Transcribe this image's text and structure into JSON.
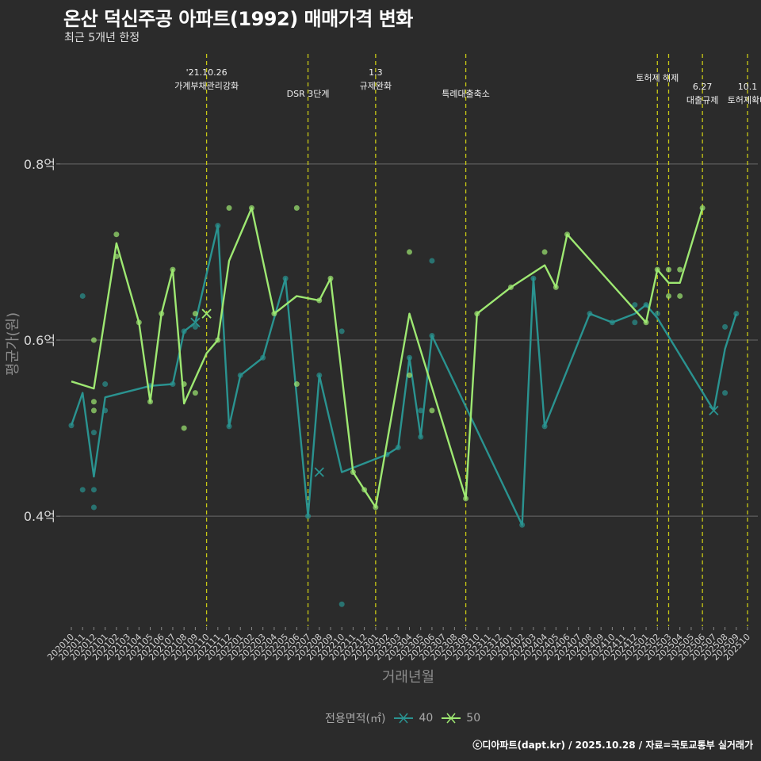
{
  "title": "온산 덕신주공 아파트(1992) 매매가격 변화",
  "subtitle": "최근 5개년 한정",
  "footer": "ⓒ디아파트(dapt.kr) / 2025.10.28 / 자료=국토교통부 실거래가",
  "legend": {
    "title": "전용면적(㎡)",
    "items": [
      {
        "label": "40",
        "color": "#2a9390"
      },
      {
        "label": "50",
        "color": "#9ee872"
      }
    ]
  },
  "chart_data": {
    "type": "line",
    "xlabel": "거래년월",
    "ylabel": "평균가(원)",
    "ylim": [
      0.275,
      0.925
    ],
    "yticks": [
      {
        "value": 0.4,
        "label": "0.4억"
      },
      {
        "value": 0.6,
        "label": "0.6억"
      },
      {
        "value": 0.8,
        "label": "0.8억"
      }
    ],
    "categories": [
      "202010",
      "202011",
      "202012",
      "202101",
      "202102",
      "202103",
      "202104",
      "202105",
      "202106",
      "202107",
      "202108",
      "202109",
      "202110",
      "202111",
      "202112",
      "202201",
      "202202",
      "202203",
      "202204",
      "202205",
      "202206",
      "202207",
      "202208",
      "202209",
      "202210",
      "202211",
      "202212",
      "202301",
      "202302",
      "202303",
      "202304",
      "202305",
      "202306",
      "202307",
      "202308",
      "202309",
      "202310",
      "202311",
      "202312",
      "202401",
      "202402",
      "202403",
      "202404",
      "202405",
      "202406",
      "202407",
      "202408",
      "202409",
      "202410",
      "202411",
      "202412",
      "202501",
      "202502",
      "202503",
      "202504",
      "202505",
      "202506",
      "202507",
      "202508",
      "202509",
      "202510"
    ],
    "events": [
      {
        "x": 12.0,
        "lines": [
          "'21.10.26",
          "가계부채관리강화"
        ],
        "row": 0
      },
      {
        "x": 21.0,
        "lines": [
          "DSR 3단계"
        ],
        "row": 2
      },
      {
        "x": 27.0,
        "lines": [
          "1.3",
          "규제완화"
        ],
        "row": 0
      },
      {
        "x": 35.0,
        "lines": [
          "특례대출축소"
        ],
        "row": 2
      },
      {
        "x": 52.0,
        "lines": [
          "토허제 해제"
        ],
        "row": 1
      },
      {
        "x": 53.0,
        "lines": [
          ""
        ],
        "row": 1
      },
      {
        "x": 56.0,
        "lines": [
          "6.27",
          "대출규제"
        ],
        "row": 1
      },
      {
        "x": 60.0,
        "lines": [
          "10.1",
          "토허제확대"
        ],
        "row": 1
      }
    ],
    "series": [
      {
        "name": "40",
        "color": "#2a9390",
        "line": [
          [
            0,
            0.503
          ],
          [
            1,
            0.54
          ],
          [
            2,
            0.445
          ],
          [
            3,
            0.535
          ],
          [
            7,
            0.548
          ],
          [
            9,
            0.55
          ],
          [
            10,
            0.61
          ],
          [
            11,
            0.62
          ],
          [
            13,
            0.73
          ],
          [
            14,
            0.502
          ],
          [
            15,
            0.56
          ],
          [
            17,
            0.58
          ],
          [
            19,
            0.67
          ],
          [
            21,
            0.4
          ],
          [
            22,
            0.56
          ],
          [
            24,
            0.45
          ],
          [
            28,
            0.47
          ],
          [
            29,
            0.478
          ],
          [
            30,
            0.58
          ],
          [
            31,
            0.49
          ],
          [
            32,
            0.605
          ],
          [
            40,
            0.39
          ],
          [
            41,
            0.67
          ],
          [
            42,
            0.502
          ],
          [
            46,
            0.63
          ],
          [
            48,
            0.62
          ],
          [
            50,
            0.63
          ],
          [
            51,
            0.64
          ],
          [
            52,
            0.625
          ],
          [
            57,
            0.52
          ],
          [
            58,
            0.59
          ],
          [
            59,
            0.63
          ]
        ],
        "points": [
          [
            0,
            0.503
          ],
          [
            1,
            0.65
          ],
          [
            1,
            0.43
          ],
          [
            2,
            0.495
          ],
          [
            2,
            0.43
          ],
          [
            2,
            0.41
          ],
          [
            3,
            0.55
          ],
          [
            3,
            0.52
          ],
          [
            7,
            0.548
          ],
          [
            9,
            0.55
          ],
          [
            10,
            0.61
          ],
          [
            11,
            0.615
          ],
          [
            13,
            0.73
          ],
          [
            14,
            0.502
          ],
          [
            15,
            0.56
          ],
          [
            17,
            0.58
          ],
          [
            19,
            0.67
          ],
          [
            21,
            0.4
          ],
          [
            22,
            0.56
          ],
          [
            24,
            0.61
          ],
          [
            24,
            0.3
          ],
          [
            28,
            0.47
          ],
          [
            29,
            0.478
          ],
          [
            30,
            0.58
          ],
          [
            31,
            0.49
          ],
          [
            31,
            0.52
          ],
          [
            32,
            0.69
          ],
          [
            32,
            0.605
          ],
          [
            40,
            0.39
          ],
          [
            41,
            0.67
          ],
          [
            42,
            0.502
          ],
          [
            46,
            0.63
          ],
          [
            48,
            0.62
          ],
          [
            50,
            0.64
          ],
          [
            50,
            0.62
          ],
          [
            51,
            0.64
          ],
          [
            52,
            0.63
          ],
          [
            58,
            0.615
          ],
          [
            58,
            0.54
          ],
          [
            59,
            0.63
          ]
        ],
        "cross": [
          [
            11,
            0.62
          ],
          [
            22,
            0.45
          ],
          [
            57,
            0.52
          ]
        ]
      },
      {
        "name": "50",
        "color": "#9ee872",
        "line": [
          [
            0,
            0.553
          ],
          [
            2,
            0.545
          ],
          [
            4,
            0.71
          ],
          [
            6,
            0.62
          ],
          [
            7,
            0.53
          ],
          [
            8,
            0.63
          ],
          [
            9,
            0.68
          ],
          [
            10,
            0.528
          ],
          [
            12,
            0.585
          ],
          [
            13,
            0.6
          ],
          [
            14,
            0.69
          ],
          [
            16,
            0.75
          ],
          [
            18,
            0.63
          ],
          [
            20,
            0.65
          ],
          [
            22,
            0.645
          ],
          [
            23,
            0.67
          ],
          [
            25,
            0.45
          ],
          [
            26,
            0.43
          ],
          [
            27,
            0.41
          ],
          [
            30,
            0.63
          ],
          [
            35,
            0.42
          ],
          [
            36,
            0.63
          ],
          [
            39,
            0.66
          ],
          [
            42,
            0.685
          ],
          [
            43,
            0.66
          ],
          [
            44,
            0.72
          ],
          [
            51,
            0.62
          ],
          [
            52,
            0.68
          ],
          [
            53,
            0.665
          ],
          [
            54,
            0.665
          ],
          [
            56,
            0.75
          ]
        ],
        "points": [
          [
            2,
            0.6
          ],
          [
            2,
            0.53
          ],
          [
            2,
            0.52
          ],
          [
            4,
            0.72
          ],
          [
            4,
            0.695
          ],
          [
            6,
            0.62
          ],
          [
            7,
            0.53
          ],
          [
            8,
            0.63
          ],
          [
            9,
            0.68
          ],
          [
            10,
            0.55
          ],
          [
            10,
            0.5
          ],
          [
            11,
            0.63
          ],
          [
            11,
            0.54
          ],
          [
            13,
            0.6
          ],
          [
            14,
            0.75
          ],
          [
            16,
            0.75
          ],
          [
            18,
            0.63
          ],
          [
            20,
            0.75
          ],
          [
            20,
            0.55
          ],
          [
            22,
            0.645
          ],
          [
            23,
            0.67
          ],
          [
            25,
            0.45
          ],
          [
            26,
            0.43
          ],
          [
            27,
            0.41
          ],
          [
            30,
            0.7
          ],
          [
            30,
            0.56
          ],
          [
            32,
            0.52
          ],
          [
            35,
            0.42
          ],
          [
            36,
            0.63
          ],
          [
            39,
            0.66
          ],
          [
            42,
            0.7
          ],
          [
            43,
            0.66
          ],
          [
            44,
            0.72
          ],
          [
            51,
            0.62
          ],
          [
            52,
            0.68
          ],
          [
            53,
            0.68
          ],
          [
            53,
            0.65
          ],
          [
            54,
            0.68
          ],
          [
            54,
            0.65
          ],
          [
            56,
            0.75
          ]
        ],
        "cross": [
          [
            12,
            0.63
          ]
        ]
      }
    ]
  }
}
